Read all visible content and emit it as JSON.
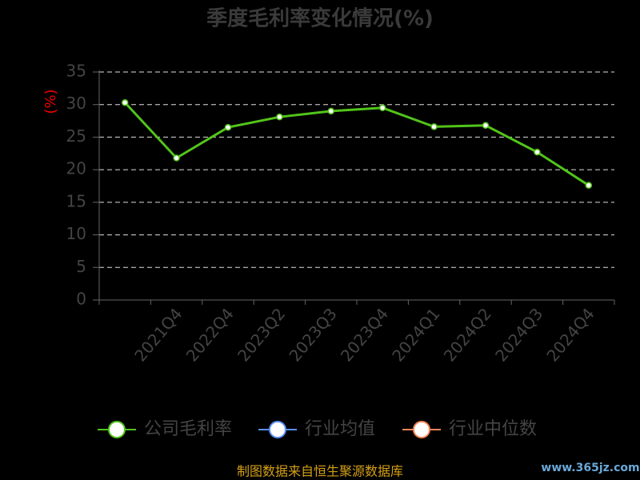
{
  "chart_data": {
    "type": "line",
    "title": "季度毛利率变化情况(%)",
    "y_label": "(%)",
    "categories": [
      null,
      "2021Q4",
      "2022Q4",
      "2023Q2",
      "2023Q3",
      "2023Q4",
      "2024Q1",
      "2024Q2",
      "2024Q3",
      "2024Q4"
    ],
    "series": [
      {
        "name": "公司毛利率",
        "color": "#52c41a",
        "values": [
          30.3,
          21.8,
          26.5,
          28.1,
          29.0,
          29.5,
          26.6,
          26.8,
          22.7,
          17.6
        ]
      },
      {
        "name": "行业均值",
        "color": "#5b8ff9",
        "values": [
          null,
          null,
          null,
          null,
          null,
          null,
          null,
          null,
          null,
          null
        ]
      },
      {
        "name": "行业中位数",
        "color": "#f6845a",
        "values": [
          null,
          null,
          null,
          null,
          null,
          null,
          null,
          null,
          null,
          null
        ]
      }
    ],
    "ylim": [
      0,
      35
    ],
    "yticks": [
      0,
      5,
      10,
      15,
      20,
      25,
      30,
      35
    ],
    "grid": true,
    "source": "制图数据来自恒生聚源数据库",
    "watermark": "www.365jz.com"
  }
}
